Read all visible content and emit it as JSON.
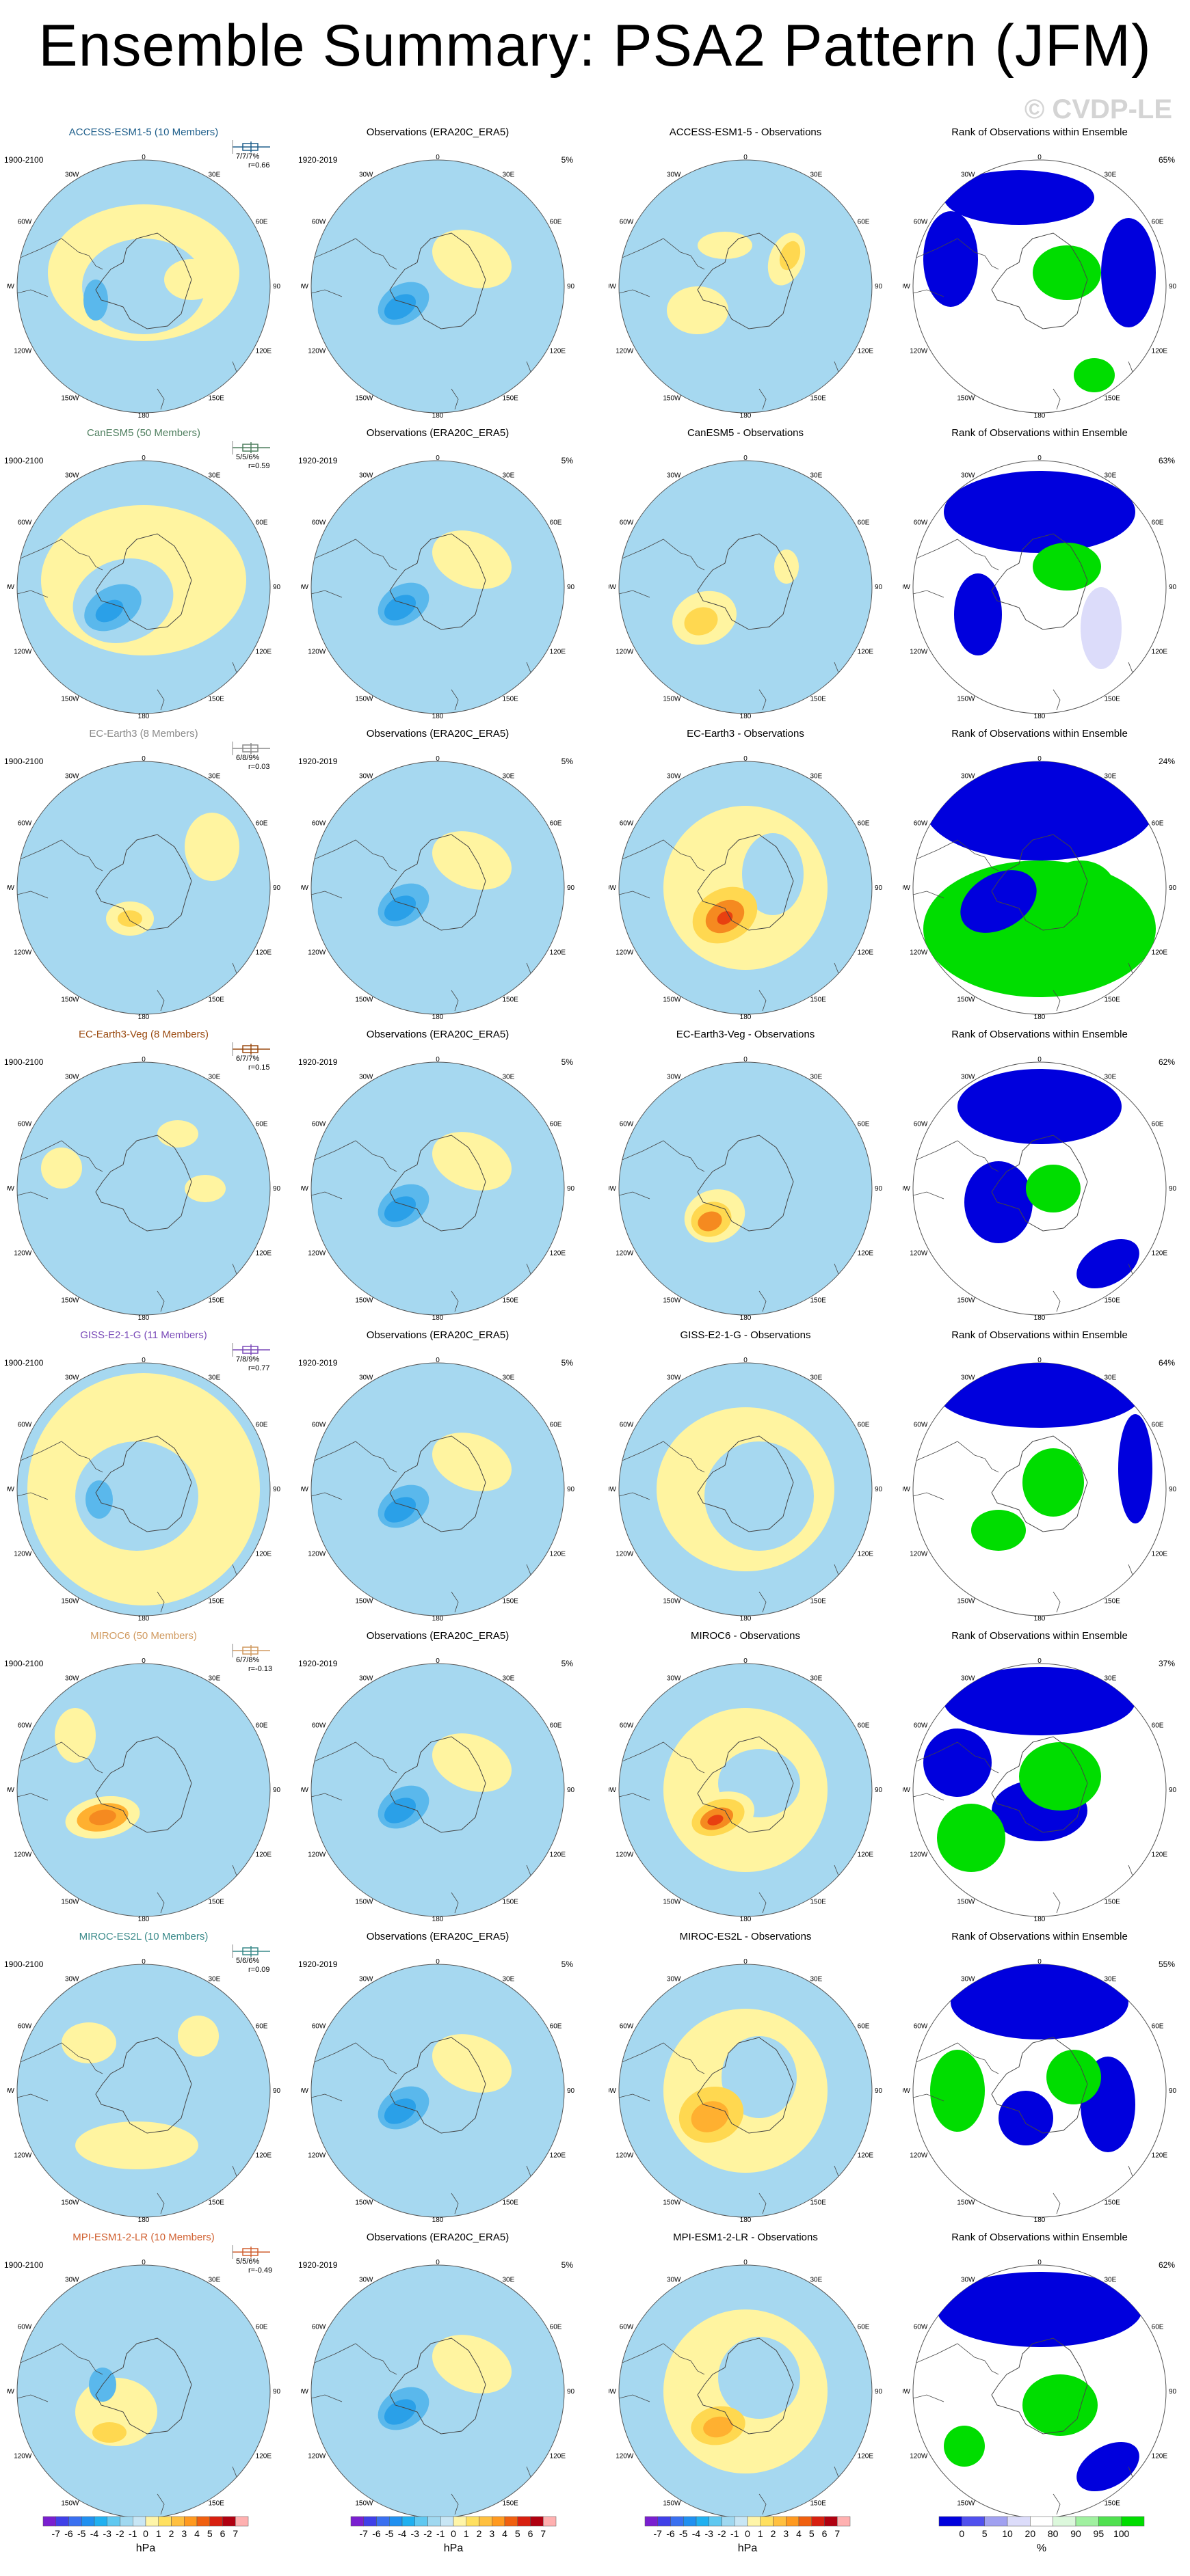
{
  "title": "Ensemble Summary: PSA2 Pattern (JFM)",
  "watermark": "© CVDP-LE",
  "obs_title": "Observations (ERA20C_ERA5)",
  "obs_period": "1920-2019",
  "obs_pct": "5%",
  "model_period": "1900-2100",
  "rank_title": "Rank of Observations within Ensemble",
  "lon_labels": [
    "0",
    "30E",
    "60E",
    "90E",
    "120E",
    "150E",
    "180",
    "150W",
    "120W",
    "90W",
    "60W",
    "30W"
  ],
  "models": [
    {
      "name": "ACCESS-ESM1-5 (10 Members)",
      "diff": "ACCESS-ESM1-5 - Observations",
      "pct": "7/7/7%",
      "r": "r=0.66",
      "rank": "65%",
      "color": "#1f5f8b",
      "pattern": "access"
    },
    {
      "name": "CanESM5 (50 Members)",
      "diff": "CanESM5 - Observations",
      "pct": "5/5/6%",
      "r": "r=0.59",
      "rank": "63%",
      "color": "#4f7f5f",
      "pattern": "canesm"
    },
    {
      "name": "EC-Earth3 (8 Members)",
      "diff": "EC-Earth3 - Observations",
      "pct": "6/8/9%",
      "r": "r=0.03",
      "rank": "24%",
      "color": "#8a8a8a",
      "pattern": "ecearth"
    },
    {
      "name": "EC-Earth3-Veg (8 Members)",
      "diff": "EC-Earth3-Veg - Observations",
      "pct": "6/7/7%",
      "r": "r=0.15",
      "rank": "62%",
      "color": "#9a4a10",
      "pattern": "ecveg"
    },
    {
      "name": "GISS-E2-1-G (11 Members)",
      "diff": "GISS-E2-1-G - Observations",
      "pct": "7/8/9%",
      "r": "r=0.77",
      "rank": "64%",
      "color": "#7a4ab8",
      "pattern": "giss"
    },
    {
      "name": "MIROC6 (50 Members)",
      "diff": "MIROC6 - Observations",
      "pct": "6/7/8%",
      "r": "r=-0.13",
      "rank": "37%",
      "color": "#d09a60",
      "pattern": "miroc6"
    },
    {
      "name": "MIROC-ES2L (10 Members)",
      "diff": "MIROC-ES2L - Observations",
      "pct": "5/6/6%",
      "r": "r=0.09",
      "rank": "55%",
      "color": "#3a8a8a",
      "pattern": "es2l"
    },
    {
      "name": "MPI-ESM1-2-LR (10 Members)",
      "diff": "MPI-ESM1-2-LR - Observations",
      "pct": "5/5/6%",
      "r": "r=-0.49",
      "rank": "62%",
      "color": "#d06030",
      "pattern": "mpi"
    }
  ],
  "colorbar": {
    "ticks": [
      "-7",
      "-6",
      "-5",
      "-4",
      "-3",
      "-2",
      "-1",
      "0",
      "1",
      "2",
      "3",
      "4",
      "5",
      "6",
      "7"
    ],
    "unit": "hPa",
    "colors": [
      "#7a1fd0",
      "#4040e8",
      "#3a70f0",
      "#2090f0",
      "#20b0f0",
      "#60c8f0",
      "#a0d8f0",
      "#c8e6f5",
      "#fff5a8",
      "#ffe060",
      "#ffc040",
      "#ff9a20",
      "#f06010",
      "#d82010",
      "#b00010",
      "#ffb0b0"
    ]
  },
  "rank_colorbar": {
    "ticks": [
      "0",
      "5",
      "10",
      "20",
      "80",
      "90",
      "95",
      "100"
    ],
    "unit": "%",
    "colors": [
      "#0000dd",
      "#5050ee",
      "#a0a0f0",
      "#dcdcfa",
      "#ffffff",
      "#dcf8dc",
      "#a0f0a0",
      "#50e050",
      "#00dd00"
    ]
  }
}
